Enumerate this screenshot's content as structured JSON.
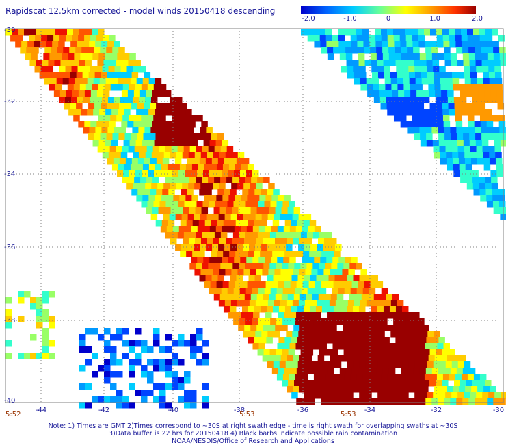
{
  "title": "Rapidscat 12.5km corrected - model winds 20150418 descending",
  "colorbar": {
    "ticks": [
      "-2.0",
      "-1.0",
      "0",
      "1.0",
      "2.0"
    ],
    "range": [
      -2.0,
      2.0
    ],
    "colors": [
      "#0000cc",
      "#0066ff",
      "#00ccff",
      "#66ff99",
      "#ffff00",
      "#ff9900",
      "#ff3300",
      "#990000"
    ]
  },
  "axes": {
    "lat_labels": [
      "-30",
      "-32",
      "-34",
      "-36",
      "-38",
      "-40"
    ],
    "lon_labels": [
      "-44",
      "-42",
      "-40",
      "-38",
      "-36",
      "-34",
      "-32",
      "-30"
    ],
    "lat_range": [
      -40,
      -30
    ],
    "lon_range": [
      -45,
      -30
    ]
  },
  "pass_times": [
    "5:52",
    "5:53",
    "5:53"
  ],
  "notes": [
    "Note: 1) Times are GMT 2)Times correspond to ~30S at right swath edge - time is right swath for overlapping swaths at ~30S",
    "3)Data buffer is 22 hrs for 20150418 4) Black barbs indicate possible rain contamination",
    "NOAA/NESDIS/Office of Research and Applications"
  ]
}
